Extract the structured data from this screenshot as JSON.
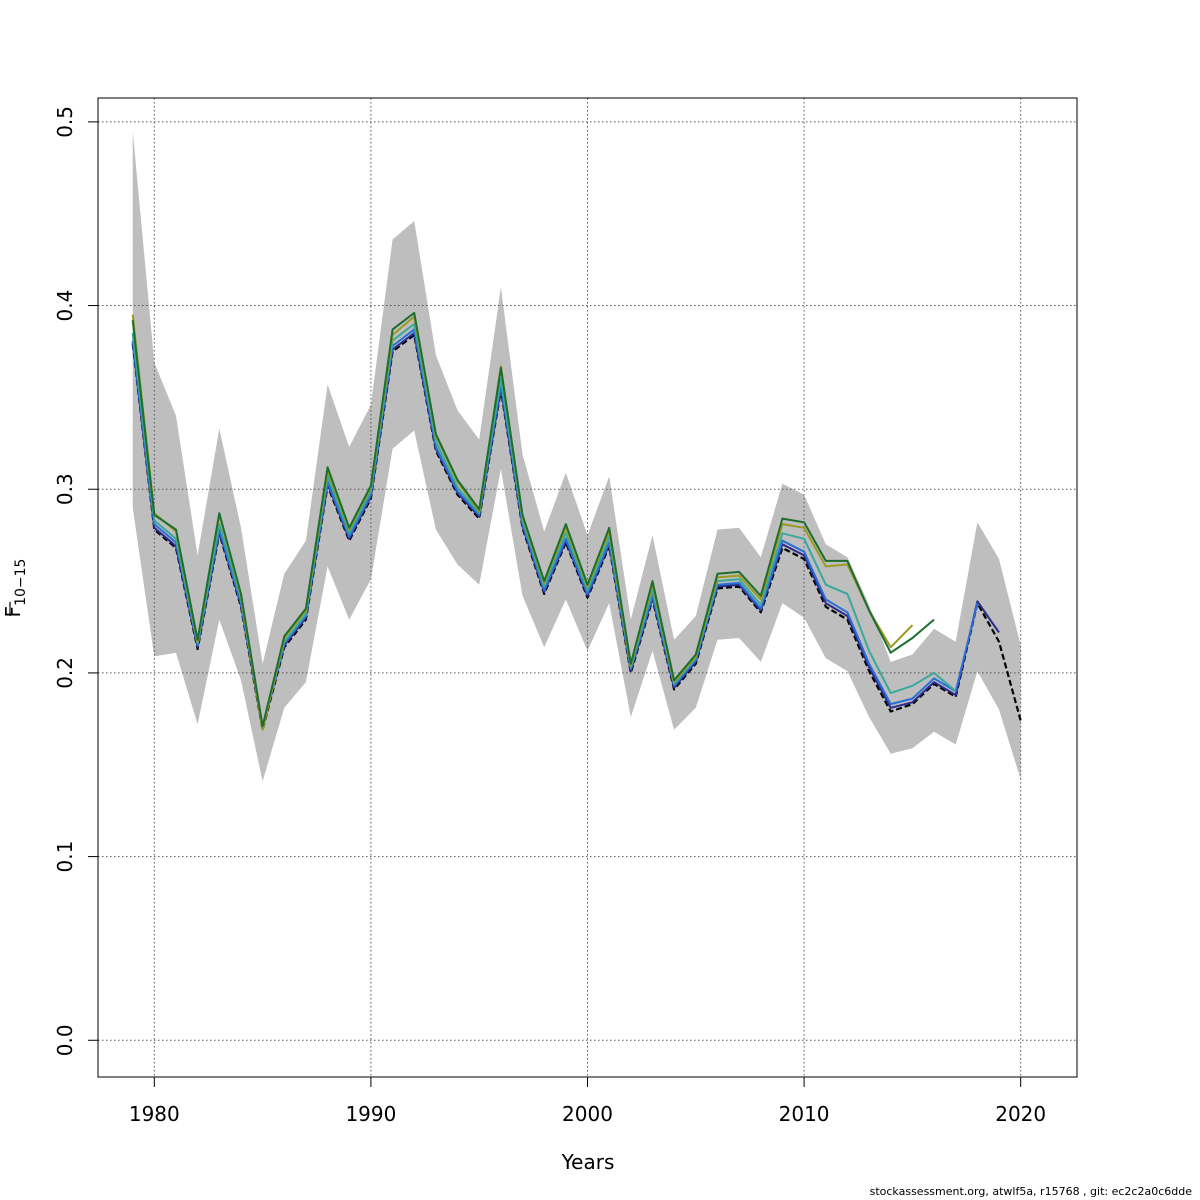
{
  "chart_data": {
    "type": "line",
    "xlabel": "Years",
    "ylabel": "F̄10−15",
    "ylabel_main": "F",
    "ylabel_sub": "10−15",
    "xlim": [
      1977.4,
      2022.6
    ],
    "ylim": [
      -0.02,
      0.513
    ],
    "x_ticks": [
      1980,
      1990,
      2000,
      2010,
      2020
    ],
    "y_ticks": [
      0.0,
      0.1,
      0.2,
      0.3,
      0.4,
      0.5
    ],
    "x_tick_labels": [
      "1980",
      "1990",
      "2000",
      "2010",
      "2020"
    ],
    "y_tick_labels": [
      "0.0",
      "0.1",
      "0.2",
      "0.3",
      "0.4",
      "0.5"
    ],
    "grid": true,
    "band_color": "#bebebe",
    "band": {
      "x": [
        1979,
        1980,
        1981,
        1982,
        1983,
        1984,
        1985,
        1986,
        1987,
        1988,
        1989,
        1990,
        1991,
        1992,
        1993,
        1994,
        1995,
        1996,
        1997,
        1998,
        1999,
        2000,
        2001,
        2002,
        2003,
        2004,
        2005,
        2006,
        2007,
        2008,
        2009,
        2010,
        2011,
        2012,
        2013,
        2014,
        2015,
        2016,
        2017,
        2018,
        2019,
        2020
      ],
      "lower": [
        0.29,
        0.209,
        0.211,
        0.172,
        0.229,
        0.196,
        0.141,
        0.181,
        0.195,
        0.258,
        0.229,
        0.251,
        0.322,
        0.332,
        0.278,
        0.259,
        0.248,
        0.311,
        0.242,
        0.214,
        0.24,
        0.212,
        0.238,
        0.176,
        0.212,
        0.169,
        0.181,
        0.218,
        0.219,
        0.206,
        0.238,
        0.23,
        0.208,
        0.201,
        0.176,
        0.156,
        0.159,
        0.168,
        0.161,
        0.201,
        0.18,
        0.142
      ],
      "upper": [
        0.495,
        0.369,
        0.34,
        0.264,
        0.333,
        0.279,
        0.205,
        0.254,
        0.272,
        0.357,
        0.323,
        0.346,
        0.436,
        0.446,
        0.373,
        0.343,
        0.327,
        0.41,
        0.319,
        0.277,
        0.309,
        0.275,
        0.307,
        0.229,
        0.275,
        0.218,
        0.231,
        0.278,
        0.279,
        0.263,
        0.303,
        0.297,
        0.27,
        0.263,
        0.237,
        0.206,
        0.21,
        0.224,
        0.217,
        0.282,
        0.262,
        0.215
      ]
    },
    "series": [
      {
        "color": "#000000",
        "dashed": true,
        "width": 2.2,
        "x": [
          1979,
          1980,
          1981,
          1982,
          1983,
          1984,
          1985,
          1986,
          1987,
          1988,
          1989,
          1990,
          1991,
          1992,
          1993,
          1994,
          1995,
          1996,
          1997,
          1998,
          1999,
          2000,
          2001,
          2002,
          2003,
          2004,
          2005,
          2006,
          2007,
          2008,
          2009,
          2010,
          2011,
          2012,
          2013,
          2014,
          2015,
          2016,
          2017,
          2018,
          2019,
          2020
        ],
        "y": [
          0.379,
          0.278,
          0.268,
          0.213,
          0.276,
          0.236,
          0.169,
          0.214,
          0.229,
          0.302,
          0.272,
          0.295,
          0.375,
          0.384,
          0.321,
          0.297,
          0.284,
          0.354,
          0.279,
          0.243,
          0.271,
          0.241,
          0.269,
          0.2,
          0.24,
          0.191,
          0.205,
          0.246,
          0.247,
          0.233,
          0.268,
          0.262,
          0.236,
          0.229,
          0.201,
          0.179,
          0.183,
          0.194,
          0.187,
          0.238,
          0.217,
          0.174
        ]
      },
      {
        "color": "#2c2c8c",
        "dashed": false,
        "width": 2,
        "x": [
          1979,
          1980,
          1981,
          1982,
          1983,
          1984,
          1985,
          1986,
          1987,
          1988,
          1989,
          1990,
          1991,
          1992,
          1993,
          1994,
          1995,
          1996,
          1997,
          1998,
          1999,
          2000,
          2001,
          2002,
          2003,
          2004,
          2005,
          2006,
          2007,
          2008,
          2009,
          2010,
          2011,
          2012,
          2013,
          2014,
          2015,
          2016,
          2017,
          2018,
          2019
        ],
        "y": [
          0.38,
          0.279,
          0.269,
          0.214,
          0.277,
          0.237,
          0.17,
          0.215,
          0.23,
          0.303,
          0.273,
          0.296,
          0.376,
          0.385,
          0.322,
          0.298,
          0.285,
          0.355,
          0.28,
          0.244,
          0.272,
          0.242,
          0.27,
          0.201,
          0.241,
          0.192,
          0.206,
          0.247,
          0.248,
          0.234,
          0.27,
          0.264,
          0.238,
          0.231,
          0.203,
          0.181,
          0.184,
          0.195,
          0.188,
          0.239,
          0.222
        ]
      },
      {
        "color": "#2a6fd6",
        "dashed": false,
        "width": 2,
        "x": [
          1979,
          1980,
          1981,
          1982,
          1983,
          1984,
          1985,
          1986,
          1987,
          1988,
          1989,
          1990,
          1991,
          1992,
          1993,
          1994,
          1995,
          1996,
          1997,
          1998,
          1999,
          2000,
          2001,
          2002,
          2003,
          2004,
          2005,
          2006,
          2007,
          2008,
          2009,
          2010,
          2011,
          2012,
          2013,
          2014,
          2015,
          2016,
          2017,
          2018
        ],
        "y": [
          0.381,
          0.281,
          0.271,
          0.215,
          0.278,
          0.238,
          0.17,
          0.216,
          0.231,
          0.304,
          0.274,
          0.297,
          0.378,
          0.387,
          0.323,
          0.299,
          0.286,
          0.357,
          0.281,
          0.245,
          0.273,
          0.243,
          0.271,
          0.202,
          0.242,
          0.193,
          0.207,
          0.248,
          0.249,
          0.235,
          0.272,
          0.266,
          0.24,
          0.233,
          0.205,
          0.183,
          0.186,
          0.197,
          0.19,
          0.238
        ]
      },
      {
        "color": "#3aa89a",
        "dashed": false,
        "width": 2,
        "x": [
          1979,
          1980,
          1981,
          1982,
          1983,
          1984,
          1985,
          1986,
          1987,
          1988,
          1989,
          1990,
          1991,
          1992,
          1993,
          1994,
          1995,
          1996,
          1997,
          1998,
          1999,
          2000,
          2001,
          2002,
          2003,
          2004,
          2005,
          2006,
          2007,
          2008,
          2009,
          2010,
          2011,
          2012,
          2013,
          2014,
          2015,
          2016,
          2017
        ],
        "y": [
          0.385,
          0.283,
          0.273,
          0.216,
          0.281,
          0.24,
          0.17,
          0.217,
          0.232,
          0.307,
          0.276,
          0.299,
          0.381,
          0.39,
          0.326,
          0.301,
          0.287,
          0.36,
          0.283,
          0.247,
          0.276,
          0.245,
          0.274,
          0.203,
          0.245,
          0.194,
          0.208,
          0.25,
          0.251,
          0.237,
          0.276,
          0.273,
          0.248,
          0.243,
          0.212,
          0.189,
          0.193,
          0.2,
          0.19
        ]
      },
      {
        "color": "#9a9a22",
        "dashed": false,
        "width": 2,
        "x": [
          1979,
          1980,
          1981,
          1982,
          1983,
          1984,
          1985,
          1986,
          1987,
          1988,
          1989,
          1990,
          1991,
          1992,
          1993,
          1994,
          1995,
          1996,
          1997,
          1998,
          1999,
          2000,
          2001,
          2002,
          2003,
          2004,
          2005,
          2006,
          2007,
          2008,
          2009,
          2010,
          2011,
          2012,
          2013,
          2014,
          2015
        ],
        "y": [
          0.395,
          0.287,
          0.277,
          0.217,
          0.286,
          0.242,
          0.169,
          0.219,
          0.234,
          0.31,
          0.278,
          0.301,
          0.384,
          0.394,
          0.329,
          0.304,
          0.288,
          0.367,
          0.285,
          0.249,
          0.279,
          0.247,
          0.277,
          0.204,
          0.248,
          0.195,
          0.209,
          0.252,
          0.253,
          0.24,
          0.281,
          0.279,
          0.258,
          0.259,
          0.234,
          0.214,
          0.226
        ]
      },
      {
        "color": "#1b6e2e",
        "dashed": false,
        "width": 2,
        "x": [
          1979,
          1980,
          1981,
          1982,
          1983,
          1984,
          1985,
          1986,
          1987,
          1988,
          1989,
          1990,
          1991,
          1992,
          1993,
          1994,
          1995,
          1996,
          1997,
          1998,
          1999,
          2000,
          2001,
          2002,
          2003,
          2004,
          2005,
          2006,
          2007,
          2008,
          2009,
          2010,
          2011,
          2012,
          2013,
          2014,
          2015,
          2016
        ],
        "y": [
          0.392,
          0.286,
          0.278,
          0.218,
          0.287,
          0.243,
          0.171,
          0.22,
          0.235,
          0.312,
          0.279,
          0.302,
          0.387,
          0.396,
          0.33,
          0.305,
          0.289,
          0.366,
          0.286,
          0.25,
          0.281,
          0.248,
          0.279,
          0.205,
          0.25,
          0.196,
          0.21,
          0.254,
          0.255,
          0.242,
          0.284,
          0.282,
          0.261,
          0.261,
          0.234,
          0.211,
          0.219,
          0.229
        ]
      }
    ]
  },
  "footer": "stockassessment.org, atwlf5a, r15768 , git: ec2c2a0c6dde"
}
